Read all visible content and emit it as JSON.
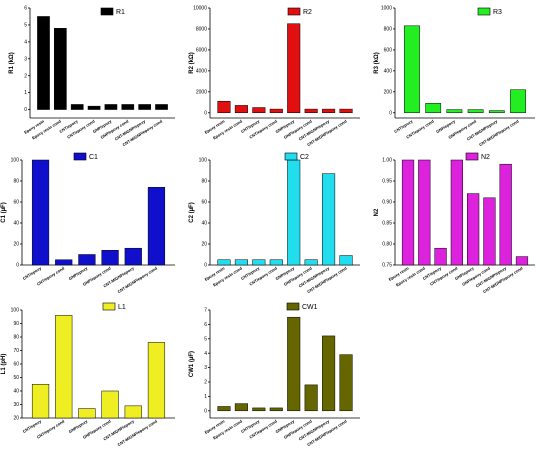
{
  "chart_data": [
    {
      "type": "bar",
      "legend": "R1",
      "ylabel": "R1 (kΩ)",
      "color": "#000000",
      "ylim": [
        -0.5,
        6
      ],
      "yticks": [
        0,
        1,
        2,
        3,
        4,
        5,
        6
      ],
      "categories": [
        "Epoxy resin",
        "Epoxy resin cond",
        "CNT/epoxy",
        "CNT/epoxy cond",
        "GNP/epoxy",
        "GNP/epoxy cond",
        "CNT-M/GNP/epoxy",
        "CNT-M/GNP/epoxy cond"
      ],
      "values": [
        5.5,
        4.8,
        0.3,
        0.2,
        0.3,
        0.3,
        0.3,
        0.3
      ]
    },
    {
      "type": "bar",
      "legend": "R2",
      "ylabel": "R2 (kΩ)",
      "color": "#e01010",
      "ylim": [
        -500,
        10000
      ],
      "yticks": [
        0,
        2000,
        4000,
        6000,
        8000,
        10000
      ],
      "categories": [
        "Epoxy resin",
        "Epoxy resin cond",
        "CNT/epoxy",
        "CNT/epoxy cond",
        "GNP/epoxy",
        "GNP/epoxy cond",
        "CNT-M/GNP/epoxy",
        "CNT-M/GNP/epoxy cond"
      ],
      "values": [
        1100,
        700,
        500,
        350,
        8500,
        350,
        350,
        350
      ]
    },
    {
      "type": "bar",
      "legend": "R3",
      "ylabel": "R3 (kΩ)",
      "color": "#22ee22",
      "ylim": [
        -50,
        1000
      ],
      "yticks": [
        0,
        200,
        400,
        600,
        800,
        1000
      ],
      "categories": [
        "CNT/epoxy",
        "CNT/epoxy cond",
        "GNP/epoxy",
        "GNP/epoxy cond",
        "CNT-M/GNP/epoxy",
        "CNT-M/GNP/epoxy cond"
      ],
      "values": [
        830,
        90,
        30,
        30,
        20,
        220
      ]
    },
    {
      "type": "bar",
      "legend": "C1",
      "ylabel": "C1 (µF)",
      "color": "#1010cc",
      "ylim": [
        0,
        100
      ],
      "yticks": [
        0,
        20,
        40,
        60,
        80,
        100
      ],
      "categories": [
        "CNT/epoxy",
        "CNT/epoxy cond",
        "GNP/epoxy",
        "GNP/epoxy cond",
        "CNT-M/GNP/epoxy",
        "CNT-M/GNP/epoxy cond"
      ],
      "values": [
        100,
        5,
        10,
        14,
        16,
        74
      ]
    },
    {
      "type": "bar",
      "legend": "C2",
      "ylabel": "C2 (µF)",
      "color": "#22ddee",
      "ylim": [
        0,
        100
      ],
      "yticks": [
        0,
        20,
        40,
        60,
        80,
        100
      ],
      "categories": [
        "Epoxy resin",
        "Epoxy resin cond",
        "CNT/epoxy",
        "CNT/epoxy cond",
        "GNP/epoxy",
        "GNP/epoxy cond",
        "CNT-M/GNP/epoxy",
        "CNT-M/GNP/epoxy cond"
      ],
      "values": [
        5,
        5,
        5,
        5,
        100,
        5,
        87,
        9
      ]
    },
    {
      "type": "bar",
      "legend": "N2",
      "ylabel": "N2",
      "color": "#dd22dd",
      "ylim": [
        0.75,
        1.0
      ],
      "yticks": [
        0.75,
        0.8,
        0.85,
        0.9,
        0.95,
        1.0
      ],
      "categories": [
        "Epoxy resin",
        "Epoxy resin cond",
        "CNT/epoxy",
        "CNT/epoxy cond",
        "GNP/epoxy",
        "GNP/epoxy cond",
        "CNT-M/GNP/epoxy",
        "CNT-M/GNP/epoxy cond"
      ],
      "values": [
        1.0,
        1.0,
        0.79,
        1.0,
        0.92,
        0.91,
        0.99,
        0.77
      ]
    },
    {
      "type": "bar",
      "legend": "L1",
      "ylabel": "L1 (pH)",
      "color": "#eeee22",
      "ylim": [
        20,
        100
      ],
      "yticks": [
        20,
        30,
        40,
        50,
        60,
        70,
        80,
        90,
        100
      ],
      "categories": [
        "CNT/epoxy",
        "CNT/epoxy cond",
        "GNP/epoxy",
        "GNP/epoxy cond",
        "CNT-M/GNP/epoxy",
        "CNT-M/GNP/epoxy cond"
      ],
      "values": [
        45,
        96,
        27,
        40,
        29,
        76
      ]
    },
    {
      "type": "bar",
      "legend": "CW1",
      "ylabel": "CW1 (µF)",
      "color": "#666600",
      "ylim": [
        -0.5,
        7
      ],
      "yticks": [
        0,
        1,
        2,
        3,
        4,
        5,
        6,
        7
      ],
      "categories": [
        "Epoxy resin",
        "Epoxy resin cond",
        "CNT/epoxy",
        "CNT/epoxy cond",
        "GNP/epoxy",
        "GNP/epoxy cond",
        "CNT-M/GNP/epoxy",
        "CNT-M/GNP/epoxy cond"
      ],
      "values": [
        0.3,
        0.5,
        0.2,
        0.2,
        6.5,
        1.8,
        5.2,
        3.9
      ]
    }
  ]
}
